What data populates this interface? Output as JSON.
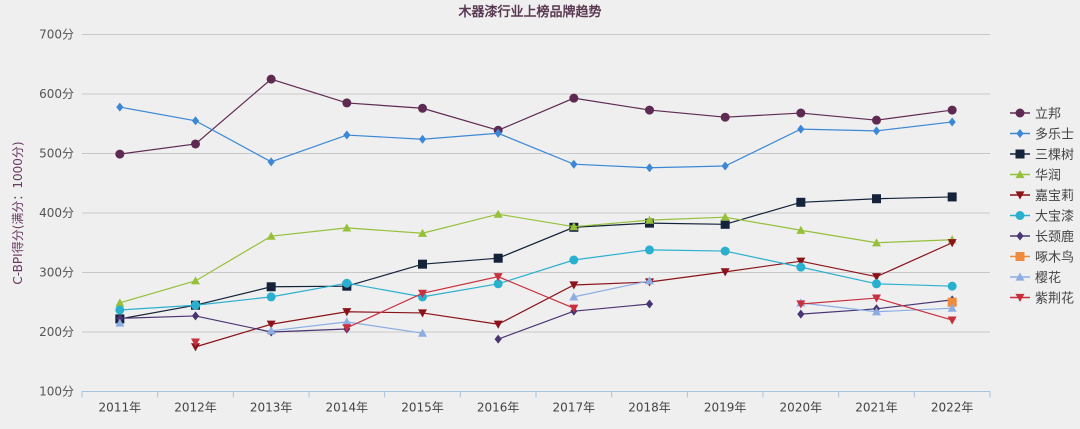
{
  "chart_data": {
    "type": "line",
    "title": "木器漆行业上榜品牌趋势",
    "ylabel": "C-BPI得分(满分：1000分)",
    "xlabel": "",
    "categories": [
      "2011年",
      "2012年",
      "2013年",
      "2014年",
      "2015年",
      "2016年",
      "2017年",
      "2018年",
      "2019年",
      "2020年",
      "2021年",
      "2022年"
    ],
    "ylim": [
      100,
      700
    ],
    "yticks": [
      100,
      200,
      300,
      400,
      500,
      600,
      700
    ],
    "ytick_suffix": "分",
    "grid": true,
    "legend_position": "right",
    "series": [
      {
        "name": "立邦",
        "color": "#5e2a52",
        "marker": "circle",
        "values": [
          499,
          516,
          625,
          585,
          576,
          539,
          593,
          573,
          561,
          568,
          556,
          573
        ]
      },
      {
        "name": "多乐士",
        "color": "#3c88d6",
        "marker": "diamond",
        "values": [
          578,
          555,
          486,
          531,
          524,
          534,
          482,
          476,
          479,
          541,
          538,
          553
        ]
      },
      {
        "name": "三棵树",
        "color": "#14233a",
        "marker": "square",
        "values": [
          222,
          245,
          276,
          277,
          314,
          324,
          376,
          383,
          381,
          418,
          424,
          427
        ]
      },
      {
        "name": "华润",
        "color": "#96c03a",
        "marker": "triangle-up",
        "values": [
          249,
          286,
          361,
          375,
          366,
          398,
          377,
          388,
          393,
          371,
          350,
          355
        ]
      },
      {
        "name": "嘉宝莉",
        "color": "#8a1219",
        "marker": "triangle-down",
        "values": [
          null,
          175,
          213,
          234,
          232,
          213,
          279,
          284,
          301,
          319,
          293,
          350
        ]
      },
      {
        "name": "大宝漆",
        "color": "#2ab0cf",
        "marker": "circle",
        "values": [
          237,
          245,
          259,
          282,
          259,
          281,
          321,
          338,
          336,
          309,
          281,
          277
        ]
      },
      {
        "name": "长颈鹿",
        "color": "#4a3572",
        "marker": "diamond",
        "values": [
          223,
          227,
          200,
          205,
          null,
          188,
          235,
          247,
          null,
          230,
          239,
          254
        ]
      },
      {
        "name": "啄木鸟",
        "color": "#f08a3c",
        "marker": "square",
        "values": [
          null,
          null,
          null,
          null,
          null,
          null,
          null,
          null,
          null,
          null,
          null,
          250
        ]
      },
      {
        "name": "樱花",
        "color": "#8bade2",
        "marker": "triangle-up",
        "values": [
          215,
          null,
          202,
          217,
          198,
          null,
          259,
          286,
          null,
          249,
          234,
          240
        ]
      },
      {
        "name": "紫荆花",
        "color": "#c8303e",
        "marker": "triangle-down",
        "values": [
          null,
          183,
          null,
          207,
          265,
          293,
          240,
          null,
          null,
          247,
          257,
          220
        ]
      }
    ]
  }
}
